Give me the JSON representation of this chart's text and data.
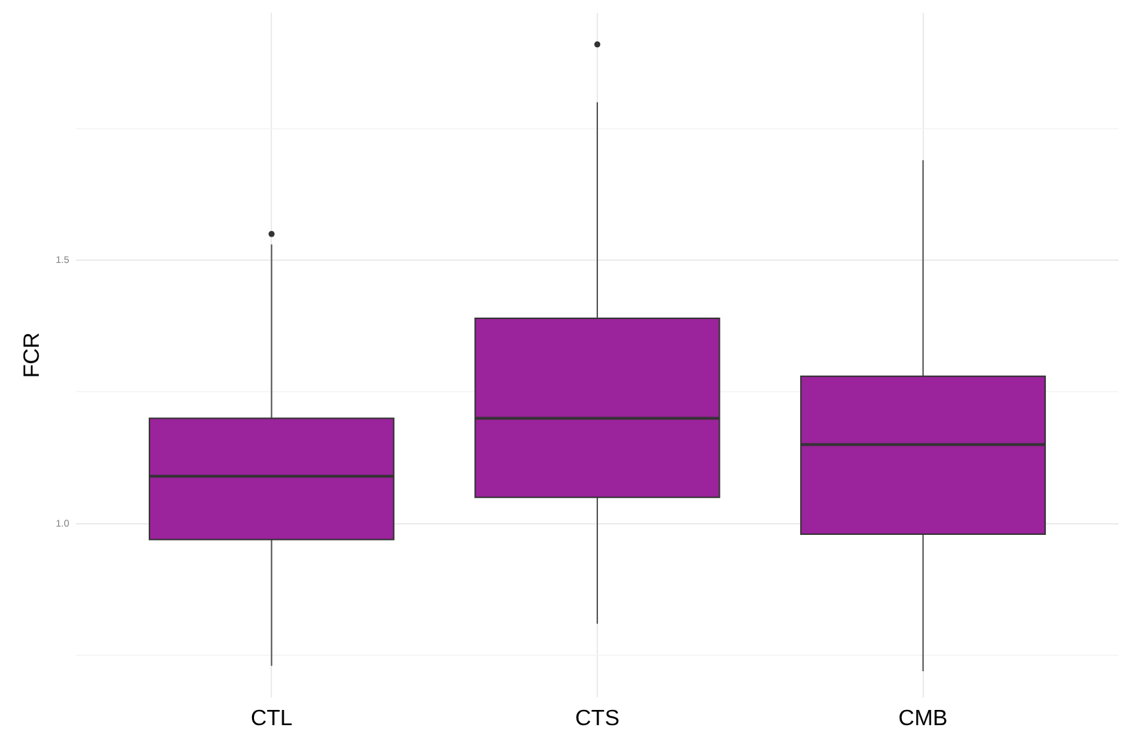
{
  "chart_data": {
    "type": "box",
    "ylabel": "FCR",
    "categories": [
      "CTL",
      "CTS",
      "CMB"
    ],
    "boxes": [
      {
        "low": 0.73,
        "q1": 0.97,
        "median": 1.09,
        "q3": 1.2,
        "high": 1.53,
        "outliers": [
          1.55
        ]
      },
      {
        "low": 0.81,
        "q1": 1.05,
        "median": 1.2,
        "q3": 1.39,
        "high": 1.8,
        "outliers": [
          1.91
        ]
      },
      {
        "low": 0.72,
        "q1": 0.98,
        "median": 1.15,
        "q3": 1.28,
        "high": 1.69
      }
    ],
    "color": "#9b239b",
    "ylim": [
      0.67,
      1.97
    ],
    "yticks": [
      {
        "value": 0.75,
        "label": null
      },
      {
        "value": 1,
        "label": "1.0"
      },
      {
        "value": 1.25,
        "label": null
      },
      1.5,
      {
        "value": 1.75,
        "label": null
      }
    ],
    "grid": true
  }
}
